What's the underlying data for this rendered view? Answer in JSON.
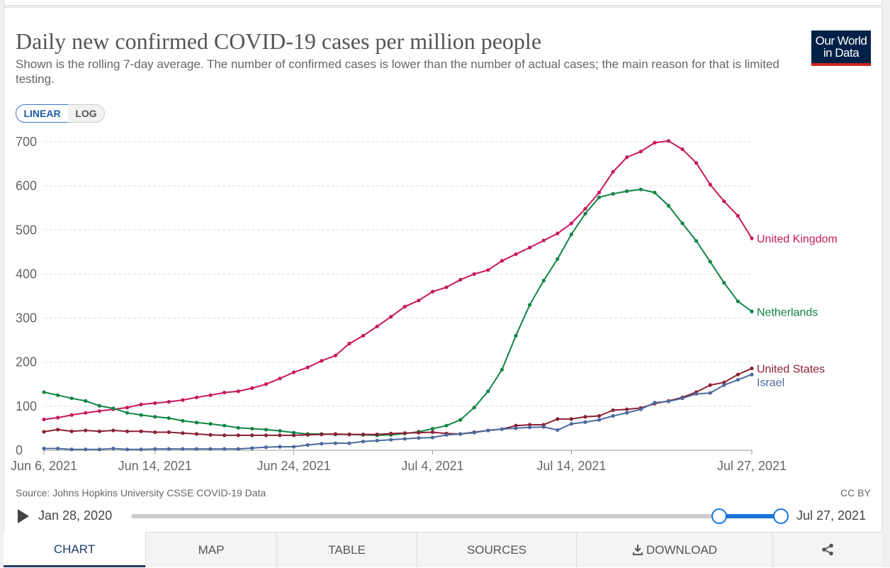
{
  "logo": {
    "line1": "Our World",
    "line2": "in Data"
  },
  "scale_toggle": [
    "LINEAR",
    "LOG"
  ],
  "chart_data": {
    "type": "line",
    "title": "Daily new confirmed COVID-19 cases per million people",
    "subtitle": "Shown is the rolling 7-day average. The number of confirmed cases is lower than the number of actual cases; the main reason for that is limited testing.",
    "x": [
      "2021-06-06",
      "2021-06-07",
      "2021-06-08",
      "2021-06-09",
      "2021-06-10",
      "2021-06-11",
      "2021-06-12",
      "2021-06-13",
      "2021-06-14",
      "2021-06-15",
      "2021-06-16",
      "2021-06-17",
      "2021-06-18",
      "2021-06-19",
      "2021-06-20",
      "2021-06-21",
      "2021-06-22",
      "2021-06-23",
      "2021-06-24",
      "2021-06-25",
      "2021-06-26",
      "2021-06-27",
      "2021-06-28",
      "2021-06-29",
      "2021-06-30",
      "2021-07-01",
      "2021-07-02",
      "2021-07-03",
      "2021-07-04",
      "2021-07-05",
      "2021-07-06",
      "2021-07-07",
      "2021-07-08",
      "2021-07-09",
      "2021-07-10",
      "2021-07-11",
      "2021-07-12",
      "2021-07-13",
      "2021-07-14",
      "2021-07-15",
      "2021-07-16",
      "2021-07-17",
      "2021-07-18",
      "2021-07-19",
      "2021-07-20",
      "2021-07-21",
      "2021-07-22",
      "2021-07-23",
      "2021-07-24",
      "2021-07-25",
      "2021-07-26",
      "2021-07-27"
    ],
    "xlim": [
      "2021-06-06",
      "2021-07-27"
    ],
    "xticks": [
      {
        "value": "2021-06-06",
        "label": "Jun 6, 2021"
      },
      {
        "value": "2021-06-14",
        "label": "Jun 14, 2021"
      },
      {
        "value": "2021-06-24",
        "label": "Jun 24, 2021"
      },
      {
        "value": "2021-07-04",
        "label": "Jul 4, 2021"
      },
      {
        "value": "2021-07-14",
        "label": "Jul 14, 2021"
      },
      {
        "value": "2021-07-27",
        "label": "Jul 27, 2021"
      }
    ],
    "ylim": [
      0,
      700
    ],
    "yticks": [
      0,
      100,
      200,
      300,
      400,
      500,
      600,
      700
    ],
    "grid": true,
    "series": [
      {
        "name": "United Kingdom",
        "color": "#c8175d",
        "values": [
          70,
          74,
          80,
          85,
          89,
          93,
          97,
          104,
          107,
          110,
          114,
          120,
          125,
          131,
          134,
          141,
          150,
          163,
          177,
          188,
          203,
          215,
          242,
          260,
          281,
          303,
          326,
          340,
          360,
          370,
          387,
          400,
          409,
          430,
          445,
          460,
          476,
          492,
          515,
          548,
          585,
          632,
          665,
          678,
          698,
          702,
          683,
          652,
          603,
          565,
          532,
          481
        ]
      },
      {
        "name": "Netherlands",
        "color": "#108544",
        "values": [
          132,
          125,
          118,
          112,
          101,
          95,
          85,
          80,
          76,
          73,
          67,
          63,
          60,
          56,
          51,
          49,
          47,
          44,
          40,
          37,
          37,
          36,
          36,
          35,
          34,
          35,
          38,
          42,
          49,
          56,
          69,
          97,
          134,
          183,
          260,
          330,
          385,
          434,
          490,
          537,
          574,
          582,
          588,
          592,
          585,
          555,
          515,
          475,
          428,
          380,
          338,
          315
        ]
      },
      {
        "name": "United States",
        "color": "#8b2135",
        "values": [
          42,
          47,
          43,
          45,
          43,
          45,
          43,
          43,
          41,
          41,
          39,
          37,
          35,
          34,
          34,
          34,
          34,
          34,
          34,
          35,
          36,
          37,
          36,
          36,
          36,
          38,
          39,
          40,
          41,
          38,
          37,
          41,
          45,
          48,
          56,
          58,
          58,
          71,
          71,
          76,
          78,
          91,
          93,
          96,
          106,
          112,
          120,
          132,
          148,
          154,
          172,
          186
        ]
      },
      {
        "name": "Israel",
        "color": "#4c6a9c",
        "values": [
          4,
          4,
          2,
          2,
          2,
          4,
          2,
          2,
          3,
          3,
          3,
          3,
          3,
          3,
          3,
          5,
          7,
          8,
          8,
          12,
          15,
          16,
          16,
          20,
          22,
          24,
          26,
          28,
          29,
          35,
          37,
          40,
          45,
          48,
          50,
          52,
          53,
          46,
          60,
          64,
          69,
          78,
          85,
          93,
          108,
          111,
          118,
          128,
          130,
          148,
          160,
          172
        ]
      }
    ],
    "source": "Source: Johns Hopkins University CSSE COVID-19 Data",
    "license": "CC BY"
  },
  "timeline": {
    "start": "Jan 28, 2020",
    "end": "Jul 27, 2021"
  },
  "tabs": [
    "CHART",
    "MAP",
    "TABLE",
    "SOURCES",
    "DOWNLOAD"
  ]
}
